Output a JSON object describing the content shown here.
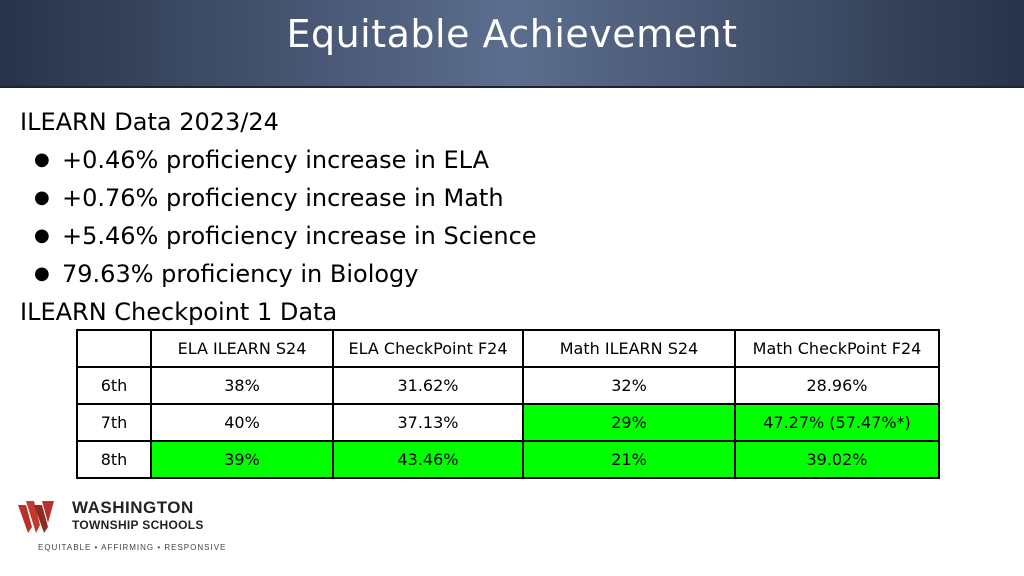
{
  "slide": {
    "title": "Equitable Achievement"
  },
  "section1": {
    "heading": "ILEARN Data 2023/24",
    "bullets": [
      "+0.46% proficiency increase in ELA",
      "+0.76% proficiency increase in Math",
      "+5.46% proficiency increase in Science",
      "79.63% proficiency in Biology"
    ]
  },
  "section2": {
    "heading": "ILEARN Checkpoint 1 Data"
  },
  "table": {
    "headers": [
      "",
      "ELA ILEARN S24",
      "ELA CheckPoint  F24",
      "Math ILEARN S24",
      "Math CheckPoint  F24"
    ],
    "rows": [
      {
        "cells": [
          "6th",
          "38%",
          "31.62%",
          "32%",
          "28.96%"
        ]
      },
      {
        "cells": [
          "7th",
          "40%",
          "37.13%",
          "29%",
          "47.27% (57.47%*)"
        ]
      },
      {
        "cells": [
          "8th",
          "39%",
          "43.46%",
          "21%",
          "39.02%"
        ]
      }
    ],
    "highlight_color": "#00ff00"
  },
  "logo": {
    "name": "WASHINGTON",
    "sub": "TOWNSHIP SCHOOLS",
    "tagline": "EQUITABLE • AFFIRMING • RESPONSIVE",
    "brand_color": "#c0392b"
  }
}
